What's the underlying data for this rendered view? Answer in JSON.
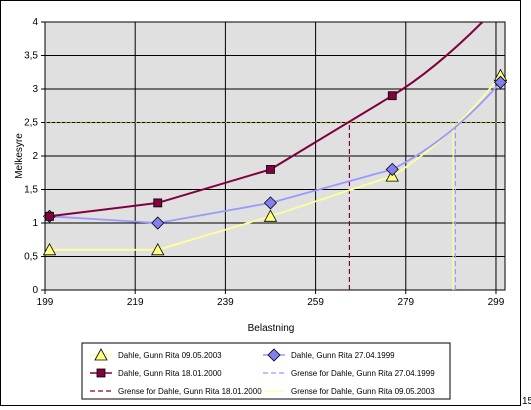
{
  "colors": {
    "plot_background": "#e0e0e0",
    "gridline": "#000000",
    "s2003": "#ffff99",
    "s2003_marker": "#ffff80",
    "s1999": "#9999ff",
    "s1999_marker": "#8080f0",
    "s2000": "#800040",
    "reference_line": "#999900"
  },
  "chart_data": {
    "type": "line",
    "xlabel": "Belastning",
    "ylabel": "Melkesyre",
    "xlim": [
      199,
      301
    ],
    "ylim": [
      0,
      4
    ],
    "xticks": [
      199,
      219,
      239,
      259,
      279,
      299
    ],
    "yticks": [
      0,
      0.5,
      1,
      1.5,
      2,
      2.5,
      3,
      3.5,
      4
    ],
    "xtick_labels": [
      "199",
      "219",
      "239",
      "259",
      "279",
      "299"
    ],
    "ytick_labels": [
      "0",
      "0,5",
      "1",
      "1,5",
      "2",
      "2,5",
      "3",
      "3,5",
      "4"
    ],
    "grid": true,
    "legend_position": "bottom",
    "reference_line": {
      "y": 2.5,
      "style": "dotted"
    },
    "series": [
      {
        "name": "Dahle, Gunn Rita 09.05.2003",
        "marker": "triangle",
        "color": "#ffff99",
        "marker_color": "#ffff80",
        "x": [
          200,
          224,
          249,
          276,
          300
        ],
        "y": [
          0.6,
          0.6,
          1.1,
          1.7,
          3.2
        ]
      },
      {
        "name": "Dahle, Gunn Rita 27.04.1999",
        "marker": "diamond",
        "color": "#9999ff",
        "marker_color": "#8080f0",
        "x": [
          200,
          224,
          249,
          276,
          300
        ],
        "y": [
          1.1,
          1.0,
          1.3,
          1.8,
          3.1
        ]
      },
      {
        "name": "Dahle, Gunn Rita 18.01.2000",
        "marker": "square",
        "color": "#800040",
        "marker_color": "#800040",
        "x": [
          200,
          224,
          249,
          276,
          296
        ],
        "y": [
          1.1,
          1.3,
          1.8,
          2.9,
          4.0
        ]
      },
      {
        "name": "Grense for Dahle, Gunn Rita 27.04.1999",
        "type": "vline",
        "dash": true,
        "color": "#9999ff",
        "x": 290,
        "y": [
          0,
          2.5
        ]
      },
      {
        "name": "Grense for Dahle, Gunn Rita 18.01.2000",
        "type": "vline",
        "dash": true,
        "color": "#800040",
        "x": 266.5,
        "y": [
          0,
          2.5
        ]
      },
      {
        "name": "Grense for Dahle, Gunn Rita 09.05.2003",
        "type": "vline",
        "dash": false,
        "color": "#ffff99",
        "x": 289.5,
        "y": [
          0,
          2.5
        ]
      }
    ]
  },
  "legend": {
    "items": [
      {
        "label": "Dahle, Gunn Rita 09.05.2003",
        "series": 0
      },
      {
        "label": "Dahle, Gunn Rita 27.04.1999",
        "series": 1
      },
      {
        "label": "Dahle, Gunn Rita 18.01.2000",
        "series": 2
      },
      {
        "label": "Grense for Dahle, Gunn Rita 27.04.1999",
        "series": 3
      },
      {
        "label": "Grense for Dahle, Gunn Rita 18.01.2000",
        "series": 4
      },
      {
        "label": "Grense for Dahle, Gunn Rita 09.05.2003",
        "series": 5
      }
    ]
  },
  "page_number": "15"
}
